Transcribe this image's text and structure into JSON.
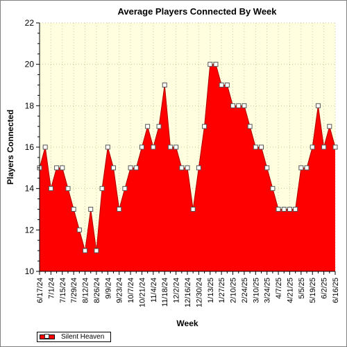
{
  "chart_data": {
    "type": "area",
    "title": "Average Players Connected By Week",
    "xlabel": "Week",
    "ylabel": "Players Connected",
    "ylim": [
      10,
      22
    ],
    "y_ticks": [
      10,
      12,
      14,
      16,
      18,
      20,
      22
    ],
    "grid": true,
    "legend_placement": "bottom-left",
    "x": [
      "6/17/24",
      "6/24/24",
      "7/1/24",
      "7/8/24",
      "7/15/24",
      "7/22/24",
      "7/29/24",
      "8/5/24",
      "8/12/24",
      "8/19/24",
      "8/26/24",
      "9/2/24",
      "9/9/24",
      "9/16/24",
      "9/23/24",
      "9/30/24",
      "10/7/24",
      "10/14/24",
      "10/21/24",
      "10/28/24",
      "11/4/24",
      "11/11/24",
      "11/18/24",
      "11/25/24",
      "12/2/24",
      "12/9/24",
      "12/16/24",
      "12/23/24",
      "12/30/24",
      "1/6/25",
      "1/13/25",
      "1/20/25",
      "1/27/25",
      "2/3/25",
      "2/10/25",
      "2/17/25",
      "2/24/25",
      "3/3/25",
      "3/10/25",
      "3/17/25",
      "3/24/25",
      "3/31/25",
      "4/7/25",
      "4/14/25",
      "4/21/25",
      "4/28/25",
      "5/5/25",
      "5/12/25",
      "5/19/25",
      "5/26/25",
      "6/2/25",
      "6/9/25",
      "6/16/25"
    ],
    "x_tick_labels": [
      "6/17/24",
      "7/1/24",
      "7/15/24",
      "7/29/24",
      "8/12/24",
      "8/26/24",
      "9/9/24",
      "9/23/24",
      "10/7/24",
      "10/21/24",
      "11/4/24",
      "11/18/24",
      "12/2/24",
      "12/16/24",
      "12/30/24",
      "1/13/25",
      "1/27/25",
      "2/10/25",
      "2/24/25",
      "3/10/25",
      "3/24/25",
      "4/7/25",
      "4/21/25",
      "5/5/25",
      "5/19/25",
      "6/2/25",
      "6/16/25"
    ],
    "series": [
      {
        "name": "Silent Heaven",
        "color": "#ff0000",
        "values": [
          15,
          16,
          14,
          15,
          15,
          14,
          13,
          12,
          11,
          13,
          11,
          14,
          16,
          15,
          13,
          14,
          15,
          15,
          16,
          17,
          16,
          17,
          19,
          16,
          16,
          15,
          15,
          13,
          15,
          17,
          20,
          20,
          19,
          19,
          18,
          18,
          18,
          17,
          16,
          16,
          15,
          14,
          13,
          13,
          13,
          13,
          15,
          15,
          16,
          18,
          16,
          17,
          16
        ]
      }
    ]
  },
  "colors": {
    "plot_background": "#ffffe0",
    "area_fill": "#ff0000",
    "marker_fill": "#ffffff"
  }
}
